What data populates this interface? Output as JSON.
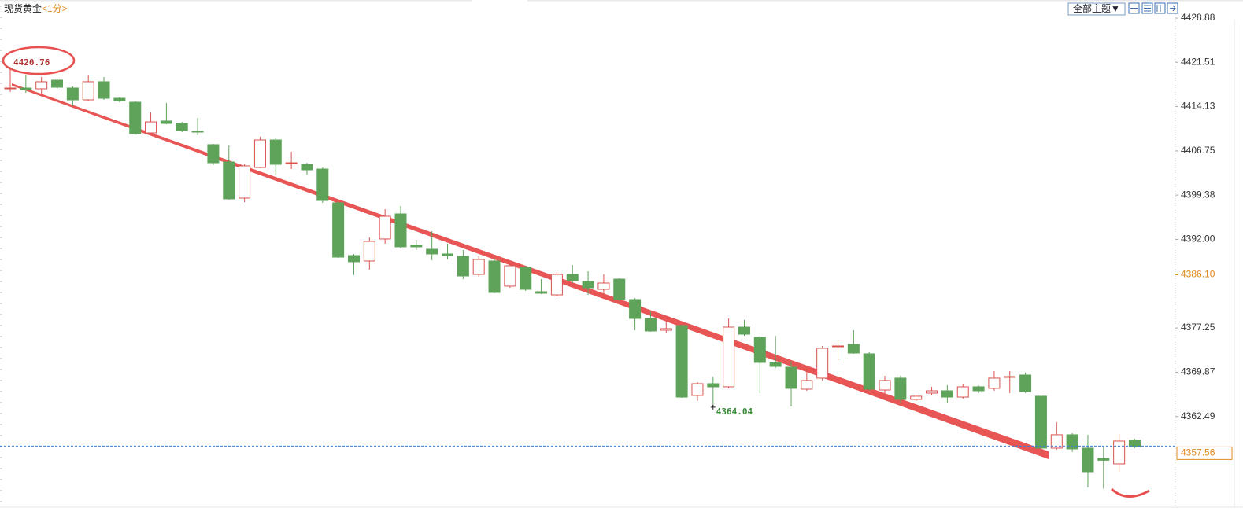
{
  "chart_data": {
    "type": "candlestick",
    "title": "现货黄金",
    "subtitle": "<1分>",
    "toolbar_label": "全部主题▼",
    "up_color": "#d9534f",
    "down_color": "#5fa35a",
    "ylim": [
      4347.39,
      4431.89
    ],
    "yticks": [
      4428.88,
      4421.51,
      4414.13,
      4406.75,
      4399.38,
      {
        "value": 4392,
        "label": "4392.00"
      },
      4377.25,
      4369.87,
      4362.49
    ],
    "marker": {
      "value": 4386.1,
      "label": "4386.10",
      "color": "#e08a1e"
    },
    "current_price": {
      "value": 4357.56,
      "label": "4357.56",
      "color": "#e08a1e",
      "line_color": "#3a7bd5"
    },
    "annotations": [
      {
        "index": 0,
        "at": "high",
        "value": 4420.76,
        "label": "4420.76",
        "color": "#b03030"
      },
      {
        "index": 45,
        "at": "low",
        "value": 4364.04,
        "label": "4364.04",
        "color": "#3a8a3a"
      }
    ],
    "open": [
      4417.09,
      4417.22,
      4417.09,
      4418.53,
      4417.22,
      4415.25,
      4418.27,
      4415.51,
      4414.86,
      4409.75,
      4411.72,
      4411.32,
      4410.01,
      4407.79,
      4404.9,
      4398.88,
      4403.99,
      4408.57,
      4404.64,
      4404.51,
      4403.72,
      4398.09,
      4389.31,
      4388.4,
      4392.07,
      4396.26,
      4391.02,
      4390.36,
      4389.58,
      4389.18,
      4386.17,
      4388.4,
      4384.21,
      4387.35,
      4383.29,
      4382.76,
      4386.17,
      4384.99,
      4383.68,
      4385.38,
      4381.98,
      4378.83,
      4376.87,
      4377.66,
      4366.0,
      4367.96,
      4367.44,
      4377.39,
      4375.69,
      4371.5,
      4370.71,
      4367.04,
      4368.88,
      4374.12,
      4374.51,
      4372.94,
      4366.91,
      4368.88,
      4365.34,
      4366.39,
      4366.78,
      4365.73,
      4367.44,
      4367.18,
      4369.01,
      4369.4,
      4365.87,
      4357.22,
      4359.45,
      4357.22,
      4355.5,
      4354.6,
      4358.53
    ],
    "high": [
      4420.76,
      4419.44,
      4419.05,
      4418.79,
      4417.48,
      4419.31,
      4419.05,
      4415.65,
      4414.99,
      4413.16,
      4414.73,
      4411.58,
      4412.24,
      4407.92,
      4407.65,
      4404.51,
      4409.1,
      4408.83,
      4406.61,
      4404.77,
      4403.99,
      4398.35,
      4389.58,
      4392.33,
      4397.04,
      4397.57,
      4391.93,
      4393.38,
      4391.28,
      4390.23,
      4389.31,
      4388.92,
      4388.27,
      4387.61,
      4385.38,
      4386.56,
      4387.74,
      4386.69,
      4386.17,
      4385.52,
      4382.24,
      4380.01,
      4378.44,
      4377.79,
      4368.22,
      4369.14,
      4378.83,
      4378.57,
      4375.95,
      4375.95,
      4371.76,
      4370.58,
      4374.25,
      4375.17,
      4376.87,
      4373.2,
      4369.27,
      4369.27,
      4366.13,
      4367.44,
      4367.7,
      4367.96,
      4367.7,
      4370.06,
      4370.06,
      4369.8,
      4366.13,
      4361.54,
      4359.71,
      4359.45,
      4357.5,
      4359.58,
      4358.79
    ],
    "low": [
      4416.56,
      4416.43,
      4416.17,
      4417.09,
      4414.2,
      4415.12,
      4415.25,
      4414.86,
      4409.36,
      4409.62,
      4411.19,
      4409.88,
      4409.36,
      4404.38,
      4398.62,
      4398.22,
      4403.86,
      4402.81,
      4403.72,
      4402.81,
      4398.09,
      4388.92,
      4386.04,
      4386.96,
      4391.28,
      4390.49,
      4390.23,
      4388.53,
      4388.66,
      4385.38,
      4385.78,
      4383.03,
      4383.94,
      4383.42,
      4382.9,
      4382.5,
      4384.73,
      4382.76,
      4382.11,
      4381.72,
      4376.87,
      4376.61,
      4376.35,
      4365.6,
      4365.08,
      4364.04,
      4367.18,
      4375.95,
      4366.39,
      4370.58,
      4364.16,
      4366.78,
      4368.49,
      4371.89,
      4372.94,
      4366.78,
      4366.39,
      4364.82,
      4365.08,
      4366.0,
      4364.82,
      4365.47,
      4366.39,
      4366.78,
      4366.39,
      4366.39,
      4356.56,
      4356.96,
      4356.56,
      4350.67,
      4350.5,
      4353.29,
      4357.22
    ],
    "close": [
      4417.22,
      4416.96,
      4418.27,
      4417.35,
      4415.25,
      4418.27,
      4415.51,
      4415.12,
      4409.62,
      4411.58,
      4411.32,
      4410.14,
      4409.88,
      4404.77,
      4398.75,
      4404.25,
      4408.57,
      4404.51,
      4404.77,
      4403.59,
      4398.48,
      4389.05,
      4388.27,
      4391.67,
      4395.86,
      4390.76,
      4390.76,
      4389.58,
      4389.31,
      4385.91,
      4388.66,
      4383.16,
      4387.61,
      4383.68,
      4383.03,
      4386.17,
      4385.12,
      4383.94,
      4384.73,
      4381.98,
      4378.83,
      4376.74,
      4377.13,
      4365.73,
      4367.96,
      4367.44,
      4377.39,
      4376.21,
      4371.5,
      4370.84,
      4367.18,
      4368.49,
      4373.86,
      4374.25,
      4373.07,
      4367.04,
      4368.49,
      4365.34,
      4365.87,
      4366.78,
      4365.73,
      4367.44,
      4366.78,
      4368.88,
      4369.14,
      4366.65,
      4357.22,
      4359.45,
      4357.09,
      4353.29,
      4355.2,
      4358.4,
      4357.48
    ]
  }
}
